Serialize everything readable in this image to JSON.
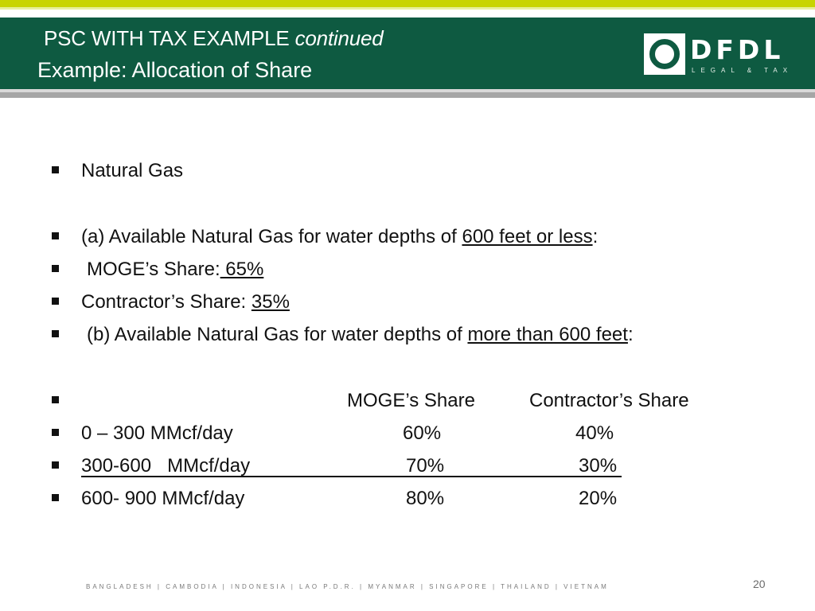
{
  "header": {
    "title_line1_main": "PSC WITH TAX EXAMPLE",
    "title_line1_italic": "continued",
    "title_line2": "Example:  Allocation of Share",
    "colors": {
      "bar": "#0e5a41",
      "accent": "#c8d400"
    }
  },
  "logo": {
    "text": "DFDL",
    "tagline": "LEGAL & TAX"
  },
  "bullets": {
    "b1": "Natural Gas",
    "b2_pre": "(a) Available Natural Gas for water depths of ",
    "b2_u": "600 feet or less",
    "b2_post": ":",
    "b3_pre": "MOGE’s Share:",
    "b3_u": " 65%",
    "b4_pre": "Contractor’s Share: ",
    "b4_u": "35%",
    "b5_pre": "(b) Available Natural Gas for water depths of ",
    "b5_u": "more than 600 feet",
    "b5_post": ":"
  },
  "table": {
    "headers": [
      "MOGE’s Share",
      "Contractor’s Share"
    ],
    "rows": [
      {
        "range": "0 – 300 MMcf/day",
        "moge": "60%",
        "contractor": "40%"
      },
      {
        "range": "300-600   MMcf/day",
        "moge": "70%",
        "contractor": "30%"
      },
      {
        "range": "600- 900 MMcf/day",
        "moge": "80%",
        "contractor": "20%"
      }
    ]
  },
  "footer": {
    "countries": "BANGLADESH   |   CAMBODIA   |   INDONESIA   |   LAO P.D.R.   |   MYANMAR   |   SINGAPORE   |   THAILAND   |   VIETNAM",
    "page": "20"
  }
}
